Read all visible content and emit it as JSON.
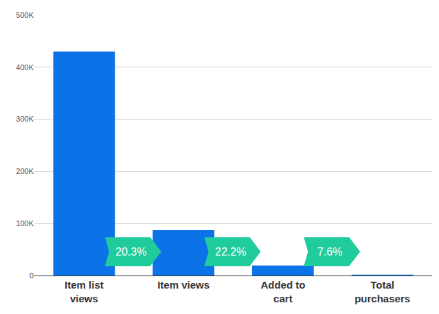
{
  "chart_data": {
    "type": "bar",
    "categories": [
      "Item list views",
      "Item views",
      "Added to cart",
      "Total purchasers"
    ],
    "values": [
      430000,
      87000,
      19000,
      1500
    ],
    "color": "#0b72e8",
    "ylim": [
      0,
      500000
    ],
    "yticks": [
      0,
      {
        "value": 100000,
        "label": "100K"
      },
      {
        "value": 200000,
        "label": "200K"
      },
      {
        "value": 300000,
        "label": "300K"
      },
      {
        "value": 400000,
        "label": "400K"
      },
      {
        "value": 500000,
        "label": "500K"
      }
    ],
    "grid": true,
    "annotations": [
      "20.3%",
      "22.2%",
      "7.6%"
    ]
  }
}
